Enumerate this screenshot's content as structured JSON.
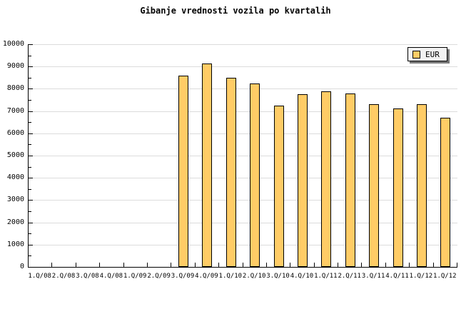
{
  "title": "Gibanje vrednosti vozila po kvartalih",
  "legend": {
    "label": "EUR"
  },
  "colors": {
    "background": "#FFFFFF",
    "bar_fill": "#FFCC66",
    "bar_border": "#000000",
    "grid": "#DCDCDC",
    "axis": "#000000",
    "text": "#000000",
    "legend_bg": "#F2F2F2",
    "legend_border": "#000000",
    "legend_shadow": "#777777"
  },
  "chart_data": {
    "type": "bar",
    "title": "Gibanje vrednosti vozila po kvartalih",
    "categories": [
      "1.Q/08",
      "2.Q/08",
      "3.Q/08",
      "4.Q/08",
      "1.Q/09",
      "2.Q/09",
      "3.Q/09",
      "4.Q/09",
      "1.Q/10",
      "2.Q/10",
      "3.Q/10",
      "4.Q/10",
      "1.Q/11",
      "2.Q/11",
      "3.Q/11",
      "4.Q/11",
      "1.Q/12",
      "1.Q/12"
    ],
    "series": [
      {
        "name": "EUR",
        "values": [
          null,
          null,
          null,
          null,
          null,
          null,
          8600,
          9150,
          8500,
          8250,
          7250,
          7750,
          7900,
          7800,
          7300,
          7100,
          7300,
          6700
        ]
      }
    ],
    "xlabel": "",
    "ylabel": "",
    "ylim": [
      0,
      10000
    ],
    "ytick_step": 1000,
    "y_minor_tick_step": 500,
    "y_tick_labels": [
      "0",
      "1000",
      "2000",
      "3000",
      "4000",
      "5000",
      "6000",
      "7000",
      "8000",
      "9000",
      "10000"
    ],
    "grid": true,
    "legend_position": "top-right"
  }
}
